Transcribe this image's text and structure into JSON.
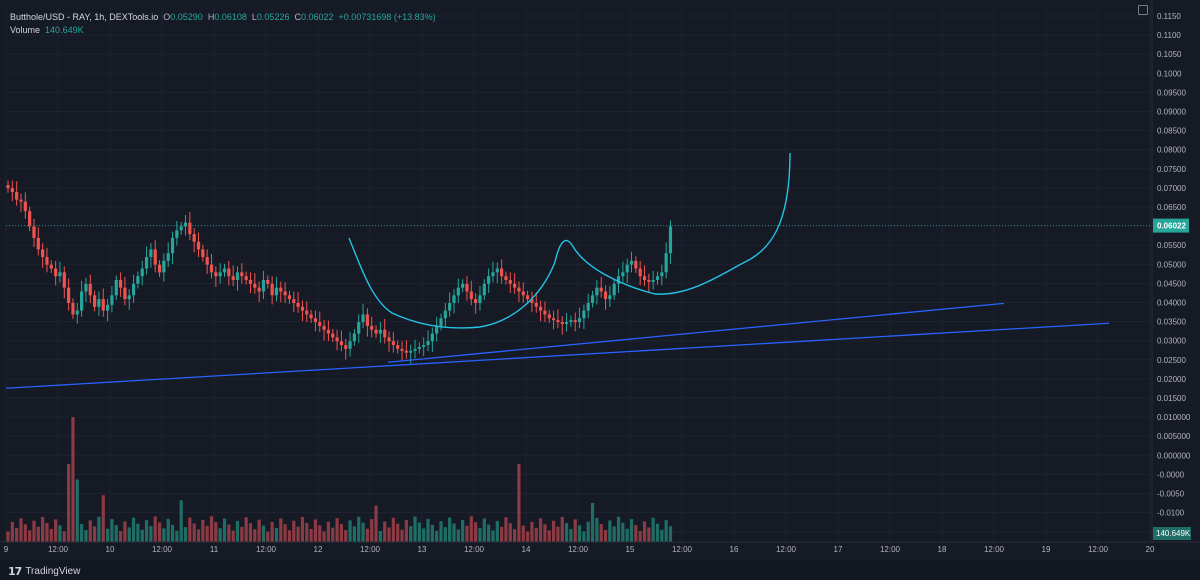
{
  "legend": {
    "symbol": "Butthole/USD - RAY, 1h, DEXTools.io",
    "open_label": "O",
    "open": "0.05290",
    "high_label": "H",
    "high": "0.06108",
    "low_label": "L",
    "low": "0.05226",
    "close_label": "C",
    "close": "0.06022",
    "change": "+0.00731698 (+13.83%)",
    "volume_label": "Volume",
    "volume": "140.649K"
  },
  "branding": {
    "name": "TradingView"
  },
  "colors": {
    "bg": "#161a25",
    "up": "#26a69a",
    "down": "#ef5350",
    "vol_up": "#1f6e66",
    "vol_down": "#8c3a43",
    "trend": "#2962ff",
    "curve": "#22c3e6",
    "axis_text": "#b2b5be"
  },
  "chart_data": {
    "type": "candlestick",
    "price_axis": {
      "ticks": [
        "0.1150",
        "0.1100",
        "0.1050",
        "0.1000",
        "0.09500",
        "0.09000",
        "0.08500",
        "0.08000",
        "0.07500",
        "0.07000",
        "0.06500",
        "0.06000",
        "0.05500",
        "0.05000",
        "0.04500",
        "0.04000",
        "0.03500",
        "0.03000",
        "0.02500",
        "0.02000",
        "0.01500",
        "0.010000",
        "0.005000",
        "0.000000",
        "-0.0000",
        "-0.0050",
        "-0.0100",
        "-0.0150"
      ],
      "last_price_label": "0.06022",
      "last_price": 0.06022,
      "volume_label": "140.649K",
      "range": [
        -0.0172,
        0.1163
      ]
    },
    "time_axis": {
      "ticks": [
        "9",
        "12:00",
        "10",
        "12:00",
        "11",
        "12:00",
        "12",
        "12:00",
        "13",
        "12:00",
        "14",
        "12:00",
        "15",
        "12:00",
        "16",
        "12:00",
        "17",
        "12:00",
        "18",
        "12:00",
        "19",
        "12:00",
        "20"
      ]
    },
    "volume_max_k": 480,
    "series": [
      {
        "name": "price",
        "values": [
          0.07,
          0.069,
          0.067,
          0.0665,
          0.064,
          0.06,
          0.057,
          0.054,
          0.052,
          0.05,
          0.049,
          0.047,
          0.048,
          0.044,
          0.04,
          0.037,
          0.038,
          0.043,
          0.045,
          0.042,
          0.039,
          0.041,
          0.038,
          0.0395,
          0.042,
          0.046,
          0.044,
          0.041,
          0.042,
          0.045,
          0.047,
          0.049,
          0.052,
          0.054,
          0.05,
          0.048,
          0.051,
          0.053,
          0.057,
          0.059,
          0.06,
          0.061,
          0.058,
          0.056,
          0.054,
          0.052,
          0.05,
          0.048,
          0.047,
          0.048,
          0.049,
          0.047,
          0.046,
          0.048,
          0.047,
          0.046,
          0.045,
          0.044,
          0.043,
          0.046,
          0.045,
          0.042,
          0.044,
          0.043,
          0.042,
          0.041,
          0.04,
          0.039,
          0.038,
          0.037,
          0.036,
          0.035,
          0.034,
          0.033,
          0.032,
          0.031,
          0.03,
          0.029,
          0.028,
          0.03,
          0.032,
          0.035,
          0.037,
          0.034,
          0.033,
          0.032,
          0.033,
          0.031,
          0.03,
          0.029,
          0.028,
          0.0275,
          0.027,
          0.0275,
          0.028,
          0.0285,
          0.029,
          0.03,
          0.032,
          0.034,
          0.036,
          0.038,
          0.04,
          0.042,
          0.044,
          0.045,
          0.043,
          0.041,
          0.04,
          0.042,
          0.045,
          0.047,
          0.048,
          0.049,
          0.047,
          0.046,
          0.045,
          0.044,
          0.043,
          0.042,
          0.041,
          0.04,
          0.039,
          0.038,
          0.037,
          0.036,
          0.0355,
          0.035,
          0.0345,
          0.035,
          0.0355,
          0.035,
          0.036,
          0.038,
          0.04,
          0.042,
          0.044,
          0.043,
          0.041,
          0.042,
          0.045,
          0.047,
          0.048,
          0.05,
          0.051,
          0.049,
          0.047,
          0.046,
          0.0455,
          0.046,
          0.047,
          0.048,
          0.053,
          0.06
        ]
      }
    ],
    "annotations": [
      {
        "type": "trendline",
        "from": [
          "9 00:00",
          0.0177
        ],
        "to": [
          "20 ~03:00",
          0.0347
        ]
      },
      {
        "type": "trendline",
        "from": [
          "12 ~22:00",
          0.0245
        ],
        "to": [
          "19 ~06:00",
          0.0399
        ]
      },
      {
        "type": "curve",
        "shape": "cup-and-handle drawing"
      }
    ]
  }
}
